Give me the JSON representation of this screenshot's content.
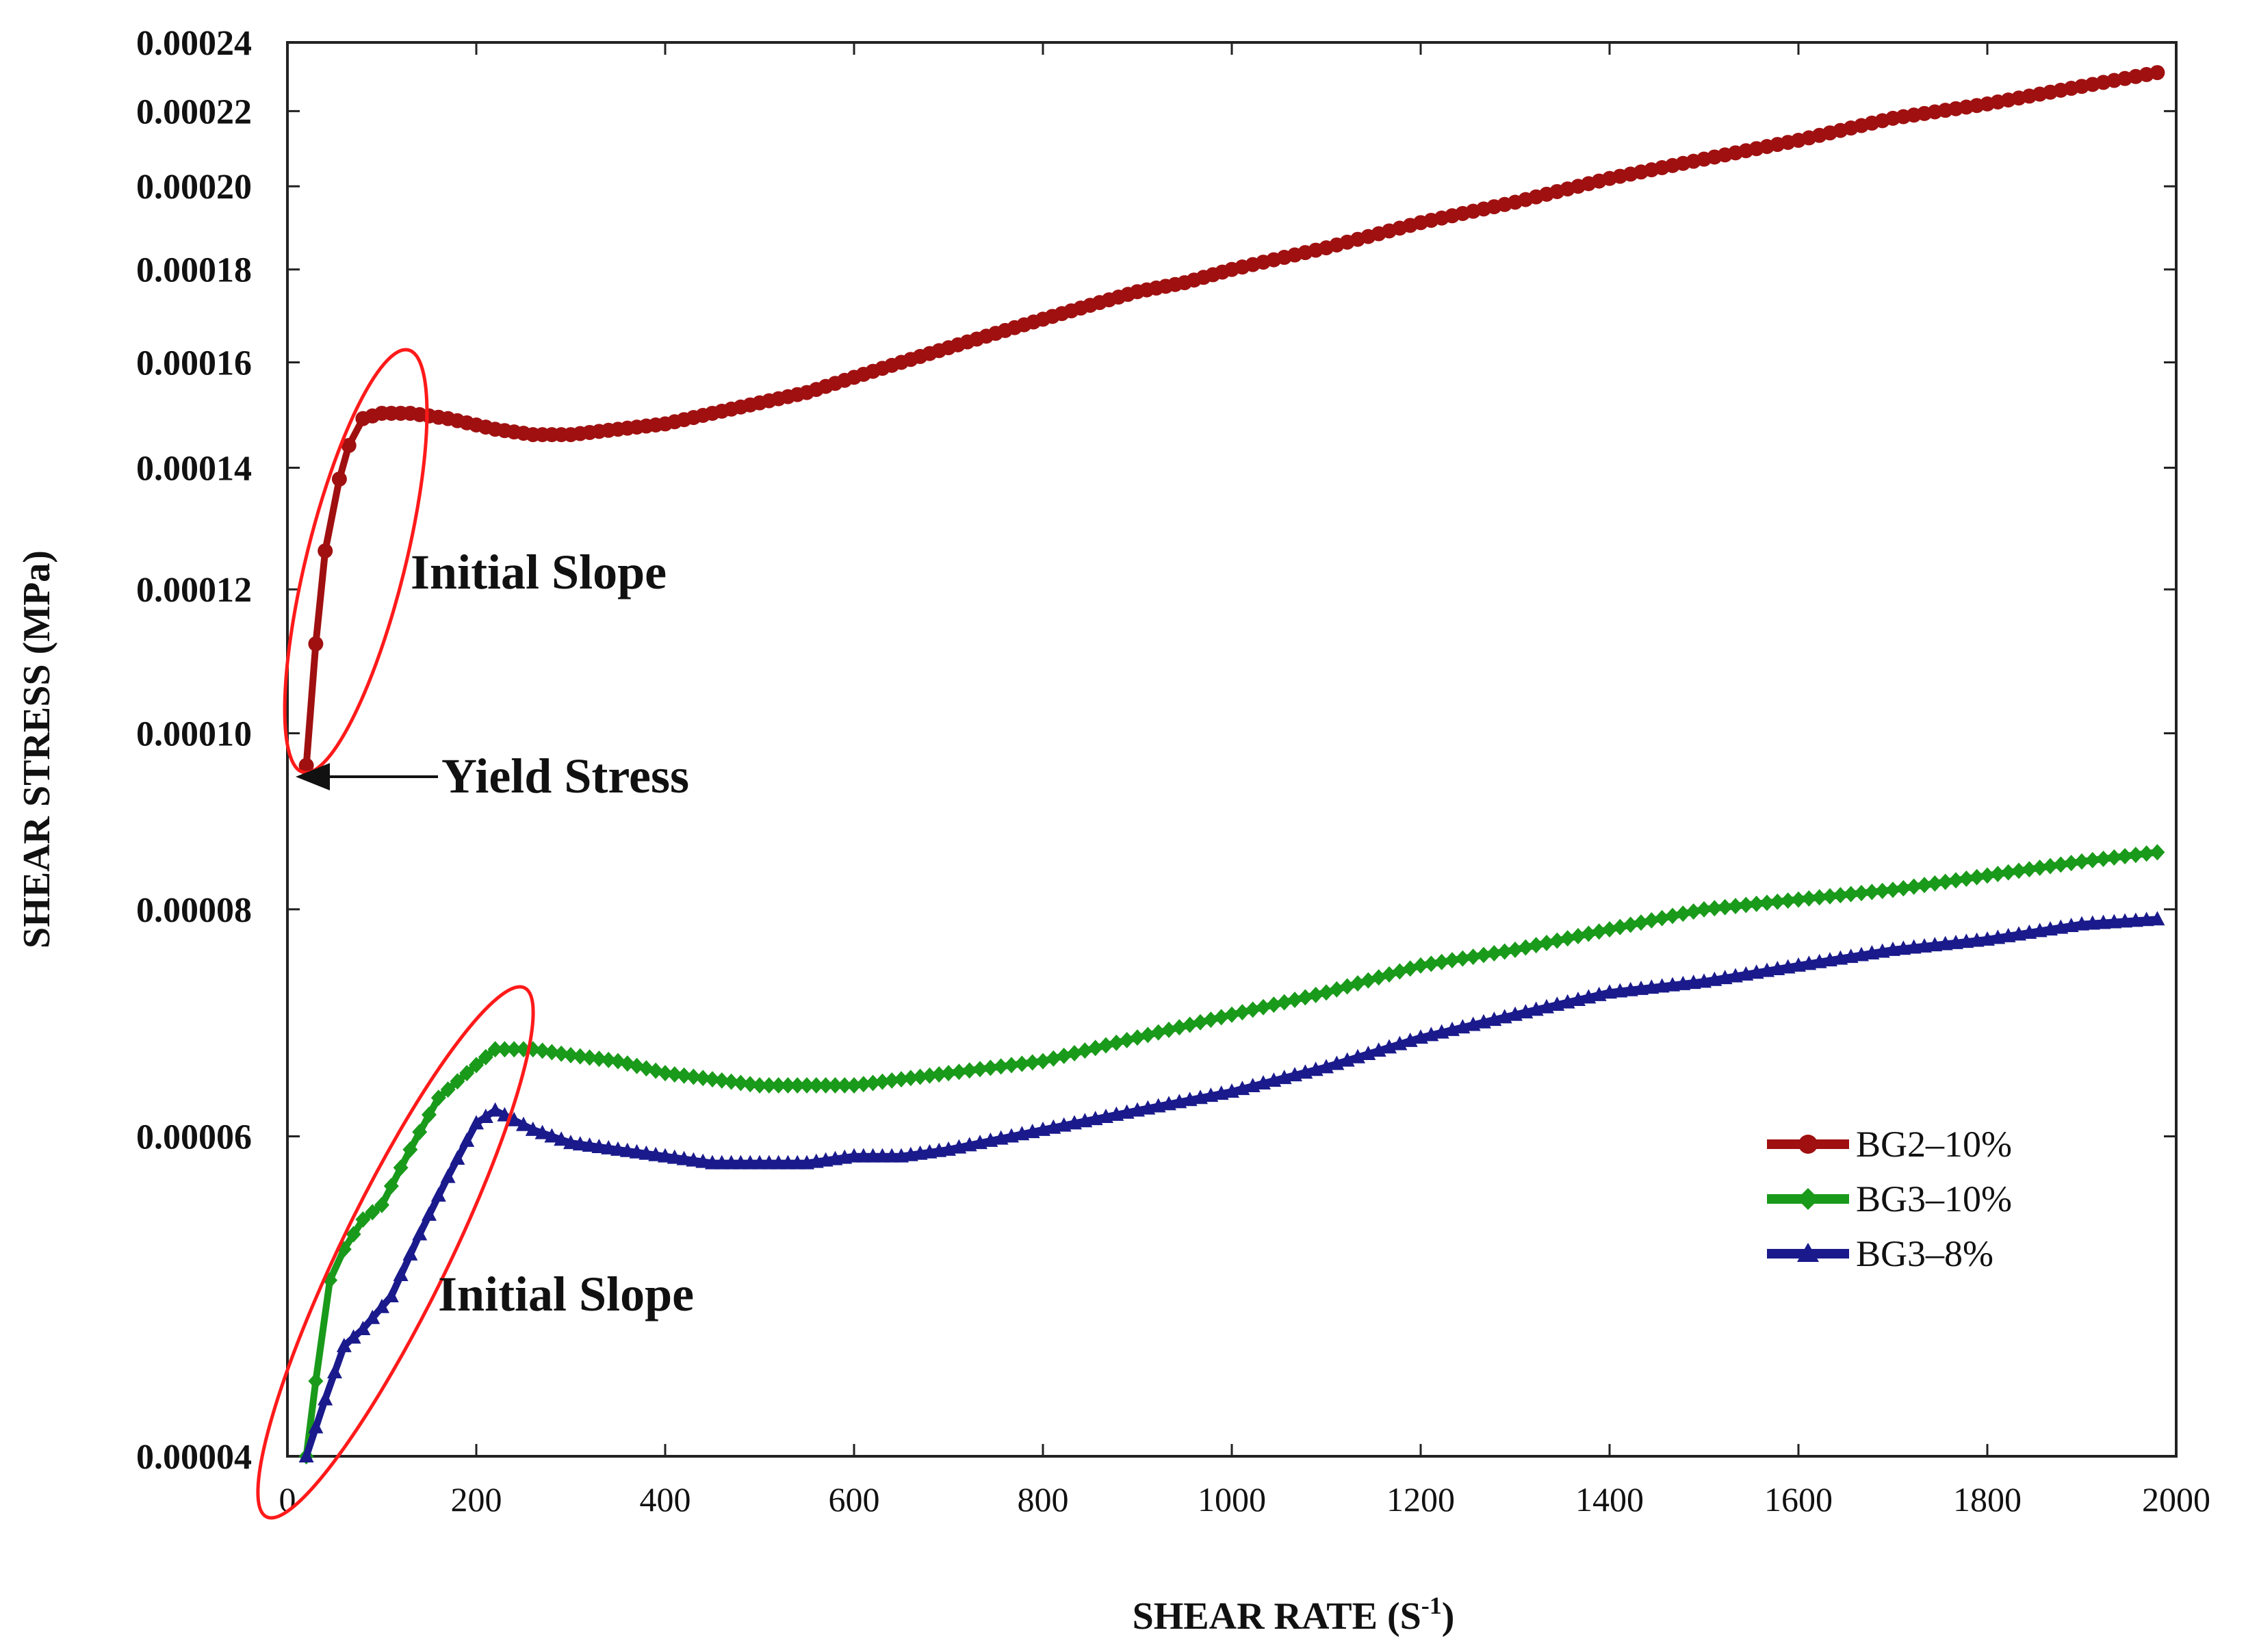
{
  "chart_data": {
    "type": "line",
    "title": "",
    "xlabel": "SHEAR RATE (S",
    "xlabel_sup": "-1",
    "xlabel_close": ")",
    "ylabel": "SHEAR STRESS (MPa)",
    "y_scale": "log",
    "xlim": [
      0,
      2000
    ],
    "ylim": [
      4e-05,
      0.00024
    ],
    "x_ticks": [
      "0",
      "200",
      "400",
      "600",
      "800",
      "1000",
      "1200",
      "1400",
      "1600",
      "1800",
      "2000"
    ],
    "y_ticks": [
      {
        "value": 4e-05,
        "label": "0.00004"
      },
      {
        "value": 6e-05,
        "label": "0.00006"
      },
      {
        "value": 8e-05,
        "label": "0.00008"
      },
      {
        "value": 0.0001,
        "label": "0.00010"
      },
      {
        "value": 0.00012,
        "label": "0.00012"
      },
      {
        "value": 0.00014,
        "label": "0.00014"
      },
      {
        "value": 0.00016,
        "label": "0.00016"
      },
      {
        "value": 0.00018,
        "label": "0.00018"
      },
      {
        "value": 0.0002,
        "label": "0.00020"
      },
      {
        "value": 0.00022,
        "label": "0.00022"
      },
      {
        "value": 0.00024,
        "label": "0.00024"
      }
    ],
    "grid": false,
    "legend_position": "right-middle",
    "series": [
      {
        "name": "BG2–10%",
        "color": "#a01010",
        "marker": "circle",
        "points": [
          [
            20,
            9.6e-05
          ],
          [
            30,
            0.000112
          ],
          [
            40,
            0.000126
          ],
          [
            55,
            0.000138
          ],
          [
            65,
            0.000144
          ],
          [
            80,
            0.000149
          ],
          [
            100,
            0.00015
          ],
          [
            130,
            0.00015
          ],
          [
            170,
            0.000149
          ],
          [
            220,
            0.000147
          ],
          [
            260,
            0.000146
          ],
          [
            300,
            0.000146
          ],
          [
            350,
            0.000147
          ],
          [
            400,
            0.000148
          ],
          [
            450,
            0.00015
          ],
          [
            500,
            0.000152
          ],
          [
            550,
            0.000154
          ],
          [
            600,
            0.000157
          ],
          [
            650,
            0.00016
          ],
          [
            700,
            0.000163
          ],
          [
            750,
            0.000166
          ],
          [
            800,
            0.000169
          ],
          [
            850,
            0.000172
          ],
          [
            900,
            0.000175
          ],
          [
            950,
            0.000177
          ],
          [
            1000,
            0.00018
          ],
          [
            1100,
            0.000185
          ],
          [
            1200,
            0.000191
          ],
          [
            1300,
            0.000196
          ],
          [
            1400,
            0.000202
          ],
          [
            1500,
            0.000207
          ],
          [
            1600,
            0.000212
          ],
          [
            1700,
            0.000218
          ],
          [
            1800,
            0.000222
          ],
          [
            1900,
            0.000227
          ],
          [
            1980,
            0.000231
          ]
        ]
      },
      {
        "name": "BG3–10%",
        "color": "#1a9a1a",
        "marker": "diamond",
        "points": [
          [
            20,
            4e-05
          ],
          [
            30,
            4.4e-05
          ],
          [
            45,
            5e-05
          ],
          [
            60,
            5.2e-05
          ],
          [
            80,
            5.4e-05
          ],
          [
            100,
            5.5e-05
          ],
          [
            130,
            5.9e-05
          ],
          [
            160,
            6.3e-05
          ],
          [
            190,
            6.5e-05
          ],
          [
            220,
            6.7e-05
          ],
          [
            260,
            6.7e-05
          ],
          [
            300,
            6.65e-05
          ],
          [
            350,
            6.6e-05
          ],
          [
            400,
            6.5e-05
          ],
          [
            450,
            6.45e-05
          ],
          [
            500,
            6.4e-05
          ],
          [
            550,
            6.4e-05
          ],
          [
            600,
            6.4e-05
          ],
          [
            650,
            6.45e-05
          ],
          [
            700,
            6.5e-05
          ],
          [
            800,
            6.6e-05
          ],
          [
            900,
            6.8e-05
          ],
          [
            1000,
            7e-05
          ],
          [
            1100,
            7.2e-05
          ],
          [
            1200,
            7.45e-05
          ],
          [
            1300,
            7.6e-05
          ],
          [
            1400,
            7.8e-05
          ],
          [
            1500,
            8e-05
          ],
          [
            1600,
            8.1e-05
          ],
          [
            1700,
            8.2e-05
          ],
          [
            1800,
            8.35e-05
          ],
          [
            1900,
            8.5e-05
          ],
          [
            1980,
            8.6e-05
          ]
        ]
      },
      {
        "name": "BG3–8%",
        "color": "#1a1a8c",
        "marker": "triangle",
        "points": [
          [
            20,
            4e-05
          ],
          [
            40,
            4.3e-05
          ],
          [
            60,
            4.6e-05
          ],
          [
            80,
            4.7e-05
          ],
          [
            110,
            4.9e-05
          ],
          [
            140,
            5.3e-05
          ],
          [
            170,
            5.7e-05
          ],
          [
            200,
            6.1e-05
          ],
          [
            220,
            6.2e-05
          ],
          [
            260,
            6.05e-05
          ],
          [
            300,
            5.95e-05
          ],
          [
            350,
            5.9e-05
          ],
          [
            400,
            5.85e-05
          ],
          [
            450,
            5.8e-05
          ],
          [
            500,
            5.8e-05
          ],
          [
            550,
            5.8e-05
          ],
          [
            600,
            5.85e-05
          ],
          [
            650,
            5.85e-05
          ],
          [
            700,
            5.9e-05
          ],
          [
            800,
            6.05e-05
          ],
          [
            900,
            6.2e-05
          ],
          [
            1000,
            6.35e-05
          ],
          [
            1100,
            6.55e-05
          ],
          [
            1200,
            6.8e-05
          ],
          [
            1300,
            7e-05
          ],
          [
            1400,
            7.2e-05
          ],
          [
            1500,
            7.3e-05
          ],
          [
            1600,
            7.45e-05
          ],
          [
            1700,
            7.6e-05
          ],
          [
            1800,
            7.7e-05
          ],
          [
            1900,
            7.85e-05
          ],
          [
            1980,
            7.9e-05
          ]
        ]
      }
    ],
    "annotations": {
      "initial_slope_top": "Initial Slope",
      "yield_stress": "Yield Stress",
      "initial_slope_bottom": "Initial Slope"
    }
  }
}
